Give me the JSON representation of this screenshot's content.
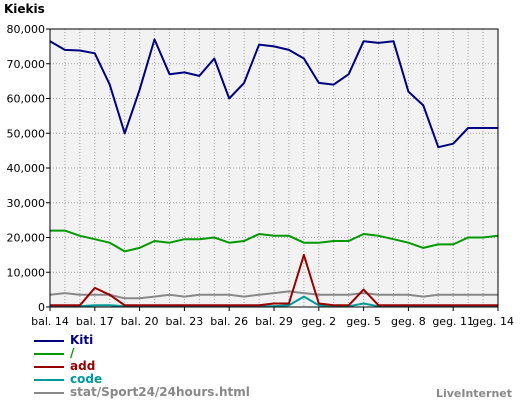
{
  "chart_data": {
    "type": "line",
    "ylabel": "Kiekis",
    "ylim": [
      0,
      80000
    ],
    "yticks": [
      0,
      10000,
      20000,
      30000,
      40000,
      50000,
      60000,
      70000,
      80000
    ],
    "ytick_labels": [
      "0",
      "10,000",
      "20,000",
      "30,000",
      "40,000",
      "50,000",
      "60,000",
      "70,000",
      "80,000"
    ],
    "grid": true,
    "legend_position": "bottom-left",
    "categories": [
      "bal. 14",
      "bal. 15",
      "bal. 16",
      "bal. 17",
      "bal. 18",
      "bal. 19",
      "bal. 20",
      "bal. 21",
      "bal. 22",
      "bal. 23",
      "bal. 24",
      "bal. 25",
      "bal. 26",
      "bal. 27",
      "bal. 28",
      "bal. 29",
      "bal. 30",
      "geg. 1",
      "geg. 2",
      "geg. 3",
      "geg. 4",
      "geg. 5",
      "geg. 6",
      "geg. 7",
      "geg. 8",
      "geg. 9",
      "geg. 10",
      "geg. 11",
      "geg. 12",
      "geg. 13",
      "geg. 14"
    ],
    "xtick_labels": [
      {
        "index": 0,
        "label": "bal. 14"
      },
      {
        "index": 3,
        "label": "bal. 17"
      },
      {
        "index": 6,
        "label": "bal. 20"
      },
      {
        "index": 9,
        "label": "bal. 23"
      },
      {
        "index": 12,
        "label": "bal. 26"
      },
      {
        "index": 15,
        "label": "bal. 29"
      },
      {
        "index": 18,
        "label": "geg. 2"
      },
      {
        "index": 21,
        "label": "geg. 5"
      },
      {
        "index": 24,
        "label": "geg. 8"
      },
      {
        "index": 27,
        "label": "geg. 11"
      },
      {
        "index": 30,
        "label": "geg. 14"
      }
    ],
    "series": [
      {
        "name": "Kiti",
        "color": "#000080",
        "values": [
          76500,
          74000,
          73800,
          73000,
          64000,
          50000,
          62500,
          77000,
          67000,
          67500,
          66500,
          71500,
          60000,
          64500,
          75500,
          75000,
          74000,
          71500,
          64500,
          64000,
          67000,
          76500,
          76000,
          76500,
          62000,
          58000,
          46000,
          47000,
          51500,
          51500,
          51500
        ]
      },
      {
        "name": "/",
        "color": "#009900",
        "values": [
          22000,
          22000,
          20500,
          19500,
          18500,
          16000,
          17000,
          19000,
          18500,
          19500,
          19500,
          20000,
          18500,
          19000,
          21000,
          20500,
          20500,
          18500,
          18500,
          19000,
          19000,
          21000,
          20500,
          19500,
          18500,
          17000,
          18000,
          18000,
          20000,
          20000,
          20500
        ]
      },
      {
        "name": "add",
        "color": "#990000",
        "values": [
          500,
          500,
          500,
          5500,
          3500,
          500,
          500,
          500,
          500,
          500,
          500,
          500,
          500,
          500,
          500,
          1000,
          1000,
          15000,
          1000,
          500,
          500,
          5000,
          500,
          500,
          500,
          500,
          500,
          500,
          500,
          500,
          500
        ]
      },
      {
        "name": "code",
        "color": "#009999",
        "values": [
          200,
          200,
          200,
          500,
          500,
          200,
          200,
          200,
          200,
          200,
          200,
          200,
          200,
          200,
          200,
          200,
          500,
          3000,
          500,
          200,
          200,
          1000,
          200,
          200,
          200,
          200,
          200,
          200,
          200,
          200,
          200
        ]
      },
      {
        "name": "stat/Sport24/24hours.html",
        "color": "#888888",
        "values": [
          3500,
          4000,
          3500,
          3500,
          3500,
          2500,
          2500,
          3000,
          3500,
          3000,
          3500,
          3500,
          3500,
          3000,
          3500,
          4000,
          4500,
          4000,
          3500,
          3500,
          3500,
          4000,
          3500,
          3500,
          3500,
          3000,
          3500,
          3500,
          3500,
          3500,
          3500
        ]
      }
    ]
  },
  "brand": "LiveInternet"
}
